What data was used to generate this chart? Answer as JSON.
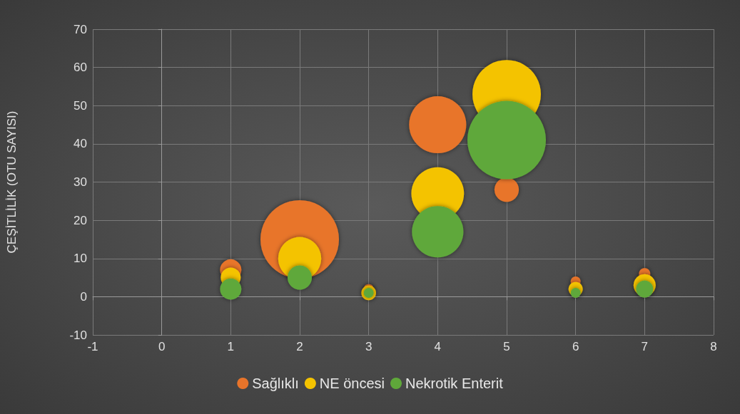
{
  "chart_data": {
    "type": "bubble",
    "ylabel": "ÇEŞİTLİLİK (OTU SAYISI)",
    "x": [
      1,
      2,
      3,
      4,
      5,
      6,
      7
    ],
    "xlim": [
      -1,
      8
    ],
    "xticks": [
      -1,
      0,
      1,
      2,
      3,
      4,
      5,
      6,
      7,
      8
    ],
    "ylim": [
      -10,
      70
    ],
    "yticks": [
      -10,
      0,
      10,
      20,
      30,
      40,
      50,
      60,
      70
    ],
    "grid": true,
    "legend": "bottom",
    "marker": "circle",
    "series": [
      {
        "name": "Sağlıklı",
        "color": "#e8742a",
        "values": [
          7,
          15,
          2,
          45,
          28,
          4,
          6
        ],
        "sizes": [
          0.074,
          1,
          0.016,
          0.53,
          0.096,
          0.016,
          0.021
        ]
      },
      {
        "name": "NE öncesi",
        "color": "#f4c300",
        "values": [
          5,
          10,
          1,
          27,
          53,
          2,
          3
        ],
        "sizes": [
          0.065,
          0.3,
          0.035,
          0.45,
          0.76,
          0.033,
          0.08
        ]
      },
      {
        "name": "Nekrotik Enterit",
        "color": "#5fa83a",
        "values": [
          2,
          5,
          1,
          17,
          41,
          1,
          2
        ],
        "sizes": [
          0.074,
          0.096,
          0.016,
          0.43,
          1,
          0.016,
          0.048
        ]
      }
    ]
  }
}
